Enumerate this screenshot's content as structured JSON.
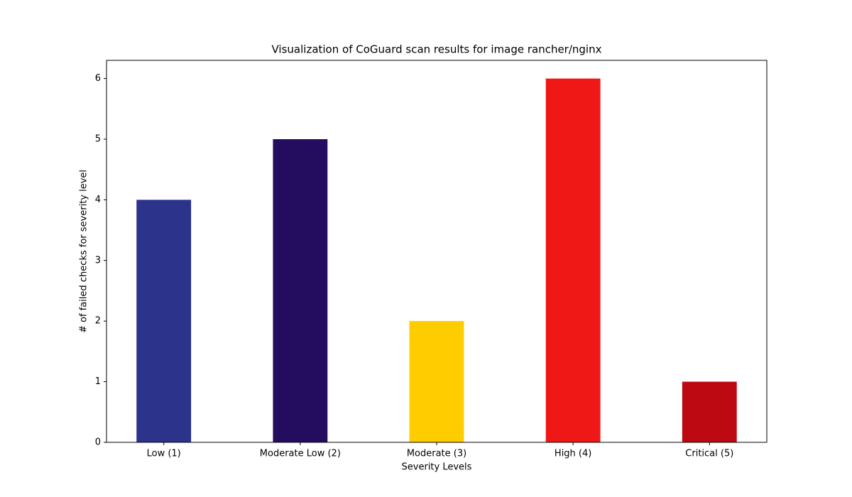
{
  "chart_data": {
    "type": "bar",
    "title": "Visualization of CoGuard scan results for image rancher/nginx",
    "x_label": "Severity Levels",
    "y_label": "# of failed checks for severity level",
    "categories": [
      "Low (1)",
      "Moderate Low (2)",
      "Moderate (3)",
      "High (4)",
      "Critical (5)"
    ],
    "values": [
      4,
      5,
      2,
      6,
      1
    ],
    "colors": [
      "#2b338b",
      "#240d5f",
      "#ffcc00",
      "#f01717",
      "#bd0a12"
    ],
    "ylim": [
      0,
      6.3
    ],
    "yticks": [
      0,
      1,
      2,
      3,
      4,
      5,
      6
    ],
    "grid": false
  }
}
